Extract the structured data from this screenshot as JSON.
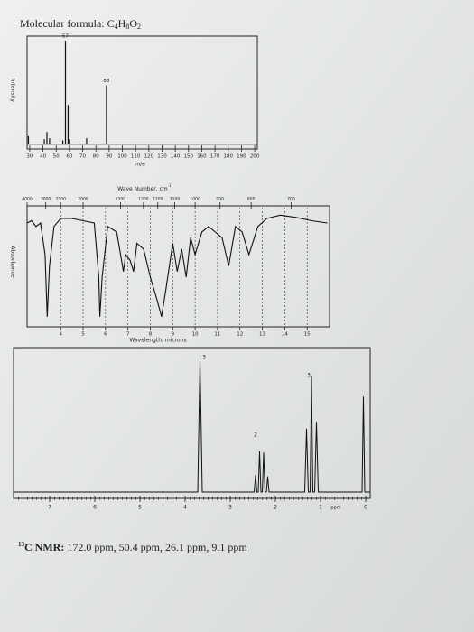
{
  "formula_label": "Molecular formula:",
  "formula": [
    "C",
    "4",
    "H",
    "8",
    "O",
    "2"
  ],
  "mass_spectrum": {
    "type": "bar",
    "xlabel": "m/e",
    "ylabel": "Intensity",
    "x": [
      29,
      41,
      43,
      45,
      55,
      57,
      59,
      60,
      73,
      88
    ],
    "values": [
      8,
      5,
      12,
      6,
      4,
      100,
      38,
      5,
      6,
      57
    ],
    "xlim": [
      28,
      202
    ],
    "ylim": [
      0,
      100
    ],
    "xticks": [
      30,
      40,
      50,
      60,
      70,
      80,
      90,
      100,
      110,
      120,
      130,
      140,
      150,
      160,
      170,
      180,
      190,
      200
    ],
    "color": "#111111"
  },
  "ir_spectrum": {
    "type": "line",
    "top_label": "Wave Number, cm",
    "top_label_sup": "-1",
    "xlabel": "Wavelength, microns",
    "ylabel": "Absorbance",
    "x": [
      2.5,
      2.7,
      2.9,
      3.1,
      3.3,
      3.4,
      3.5,
      3.7,
      4.0,
      4.5,
      5.0,
      5.5,
      5.7,
      5.75,
      5.85,
      6.1,
      6.5,
      6.8,
      6.9,
      7.1,
      7.25,
      7.4,
      7.7,
      8.0,
      8.3,
      8.5,
      8.7,
      9.0,
      9.2,
      9.4,
      9.6,
      9.8,
      10.0,
      10.3,
      10.6,
      10.9,
      11.2,
      11.5,
      11.8,
      12.1,
      12.4,
      12.8,
      13.2,
      13.8,
      14.5,
      15.2,
      15.9
    ],
    "values": [
      88,
      90,
      85,
      88,
      60,
      5,
      50,
      85,
      92,
      92,
      90,
      88,
      40,
      5,
      40,
      85,
      80,
      45,
      60,
      55,
      45,
      70,
      65,
      40,
      20,
      5,
      30,
      70,
      45,
      65,
      40,
      75,
      60,
      80,
      85,
      80,
      75,
      50,
      85,
      80,
      60,
      85,
      92,
      95,
      93,
      90,
      88
    ],
    "xlim": [
      2.5,
      16
    ],
    "ylim": [
      0,
      100
    ],
    "xticks": [
      4,
      5,
      6,
      7,
      8,
      9,
      10,
      11,
      12,
      13,
      14,
      15
    ],
    "top_ticks": [
      4000,
      3000,
      2500,
      2000,
      1500,
      1300,
      1200,
      1100,
      1000,
      900,
      800,
      700
    ],
    "color": "#111111"
  },
  "nmr_spectrum": {
    "type": "line",
    "xlabel": "ppm",
    "x": [
      7.8,
      3.72,
      3.67,
      3.62,
      2.47,
      2.44,
      2.41,
      2.38,
      2.35,
      2.32,
      2.29,
      2.26,
      2.23,
      2.2,
      2.17,
      2.14,
      1.35,
      1.31,
      1.27,
      1.23,
      1.2,
      1.17,
      1.13,
      1.09,
      1.05,
      0.08,
      0.05,
      0.02,
      -0.1
    ],
    "values": [
      0,
      0,
      95,
      0,
      0,
      12,
      0,
      0,
      29,
      0,
      0,
      28,
      0,
      0,
      11,
      0,
      0,
      45,
      0,
      0,
      83,
      0,
      0,
      50,
      0,
      0,
      68,
      0,
      0
    ],
    "xlim": [
      7.8,
      -0.1
    ],
    "ylim": [
      0,
      100
    ],
    "xticks": [
      7,
      6,
      5,
      4,
      3,
      2,
      1,
      0
    ],
    "integrations": [
      "3",
      "2",
      "3"
    ],
    "color": "#111111"
  },
  "c13": {
    "mass": "13",
    "label": "C NMR:",
    "text": "172.0 ppm, 50.4 ppm, 26.1 ppm, 9.1 ppm"
  }
}
